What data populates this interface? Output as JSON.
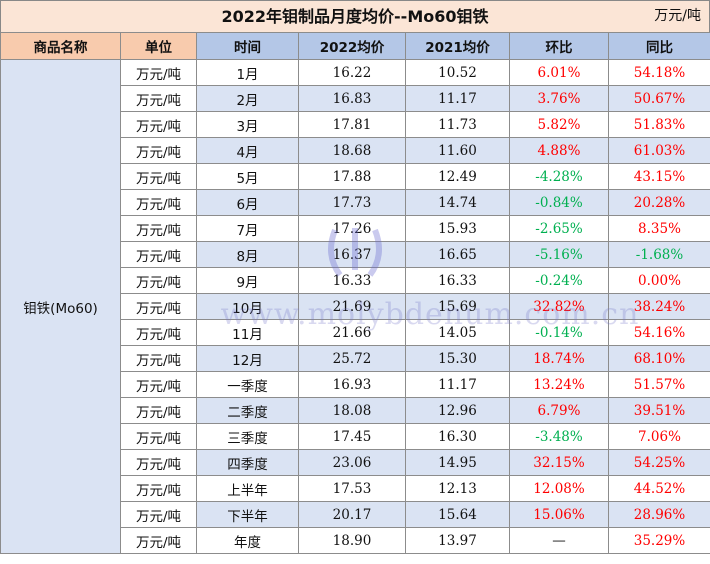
{
  "title": "2022年钼制品月度均价--Mo60钼铁",
  "unit_note": "万元/吨",
  "headers": {
    "name": "商品名称",
    "unit": "单位",
    "time": "时间",
    "y2022": "2022均价",
    "y2021": "2021均价",
    "mom": "环比",
    "yoy": "同比"
  },
  "product_name": "钼铁(Mo60)",
  "rows": [
    {
      "unit": "万元/吨",
      "time": "1月",
      "y2022": "16.22",
      "y2021": "10.52",
      "mom": "6.01%",
      "yoy": "54.18%",
      "mom_color": "red",
      "yoy_color": "red"
    },
    {
      "unit": "万元/吨",
      "time": "2月",
      "y2022": "16.83",
      "y2021": "11.17",
      "mom": "3.76%",
      "yoy": "50.67%",
      "mom_color": "red",
      "yoy_color": "red"
    },
    {
      "unit": "万元/吨",
      "time": "3月",
      "y2022": "17.81",
      "y2021": "11.73",
      "mom": "5.82%",
      "yoy": "51.83%",
      "mom_color": "red",
      "yoy_color": "red"
    },
    {
      "unit": "万元/吨",
      "time": "4月",
      "y2022": "18.68",
      "y2021": "11.60",
      "mom": "4.88%",
      "yoy": "61.03%",
      "mom_color": "red",
      "yoy_color": "red"
    },
    {
      "unit": "万元/吨",
      "time": "5月",
      "y2022": "17.88",
      "y2021": "12.49",
      "mom": "-4.28%",
      "yoy": "43.15%",
      "mom_color": "green",
      "yoy_color": "red"
    },
    {
      "unit": "万元/吨",
      "time": "6月",
      "y2022": "17.73",
      "y2021": "14.74",
      "mom": "-0.84%",
      "yoy": "20.28%",
      "mom_color": "green",
      "yoy_color": "red"
    },
    {
      "unit": "万元/吨",
      "time": "7月",
      "y2022": "17.26",
      "y2021": "15.93",
      "mom": "-2.65%",
      "yoy": "8.35%",
      "mom_color": "green",
      "yoy_color": "red"
    },
    {
      "unit": "万元/吨",
      "time": "8月",
      "y2022": "16.37",
      "y2021": "16.65",
      "mom": "-5.16%",
      "yoy": "-1.68%",
      "mom_color": "green",
      "yoy_color": "green"
    },
    {
      "unit": "万元/吨",
      "time": "9月",
      "y2022": "16.33",
      "y2021": "16.33",
      "mom": "-0.24%",
      "yoy": "0.00%",
      "mom_color": "green",
      "yoy_color": "red"
    },
    {
      "unit": "万元/吨",
      "time": "10月",
      "y2022": "21.69",
      "y2021": "15.69",
      "mom": "32.82%",
      "yoy": "38.24%",
      "mom_color": "red",
      "yoy_color": "red"
    },
    {
      "unit": "万元/吨",
      "time": "11月",
      "y2022": "21.66",
      "y2021": "14.05",
      "mom": "-0.14%",
      "yoy": "54.16%",
      "mom_color": "green",
      "yoy_color": "red"
    },
    {
      "unit": "万元/吨",
      "time": "12月",
      "y2022": "25.72",
      "y2021": "15.30",
      "mom": "18.74%",
      "yoy": "68.10%",
      "mom_color": "red",
      "yoy_color": "red"
    },
    {
      "unit": "万元/吨",
      "time": "一季度",
      "y2022": "16.93",
      "y2021": "11.17",
      "mom": "13.24%",
      "yoy": "51.57%",
      "mom_color": "red",
      "yoy_color": "red"
    },
    {
      "unit": "万元/吨",
      "time": "二季度",
      "y2022": "18.08",
      "y2021": "12.96",
      "mom": "6.79%",
      "yoy": "39.51%",
      "mom_color": "red",
      "yoy_color": "red"
    },
    {
      "unit": "万元/吨",
      "time": "三季度",
      "y2022": "17.45",
      "y2021": "16.30",
      "mom": "-3.48%",
      "yoy": "7.06%",
      "mom_color": "green",
      "yoy_color": "red"
    },
    {
      "unit": "万元/吨",
      "time": "四季度",
      "y2022": "23.06",
      "y2021": "14.95",
      "mom": "32.15%",
      "yoy": "54.25%",
      "mom_color": "red",
      "yoy_color": "red"
    },
    {
      "unit": "万元/吨",
      "time": "上半年",
      "y2022": "17.53",
      "y2021": "12.13",
      "mom": "12.08%",
      "yoy": "44.52%",
      "mom_color": "red",
      "yoy_color": "red"
    },
    {
      "unit": "万元/吨",
      "time": "下半年",
      "y2022": "20.17",
      "y2021": "15.64",
      "mom": "15.06%",
      "yoy": "28.96%",
      "mom_color": "red",
      "yoy_color": "red"
    },
    {
      "unit": "万元/吨",
      "time": "年度",
      "y2022": "18.90",
      "y2021": "13.97",
      "mom": "—",
      "yoy": "35.29%",
      "mom_color": "black",
      "yoy_color": "red"
    }
  ],
  "watermark": "www.molybdenum.com.cn",
  "colors": {
    "title_bg": "#fbe5d6",
    "header_left_bg": "#f8cbad",
    "header_right_bg": "#b4c7e7",
    "stripe_bg": "#dae3f3",
    "positive": "#ff0000",
    "negative": "#00b050"
  }
}
